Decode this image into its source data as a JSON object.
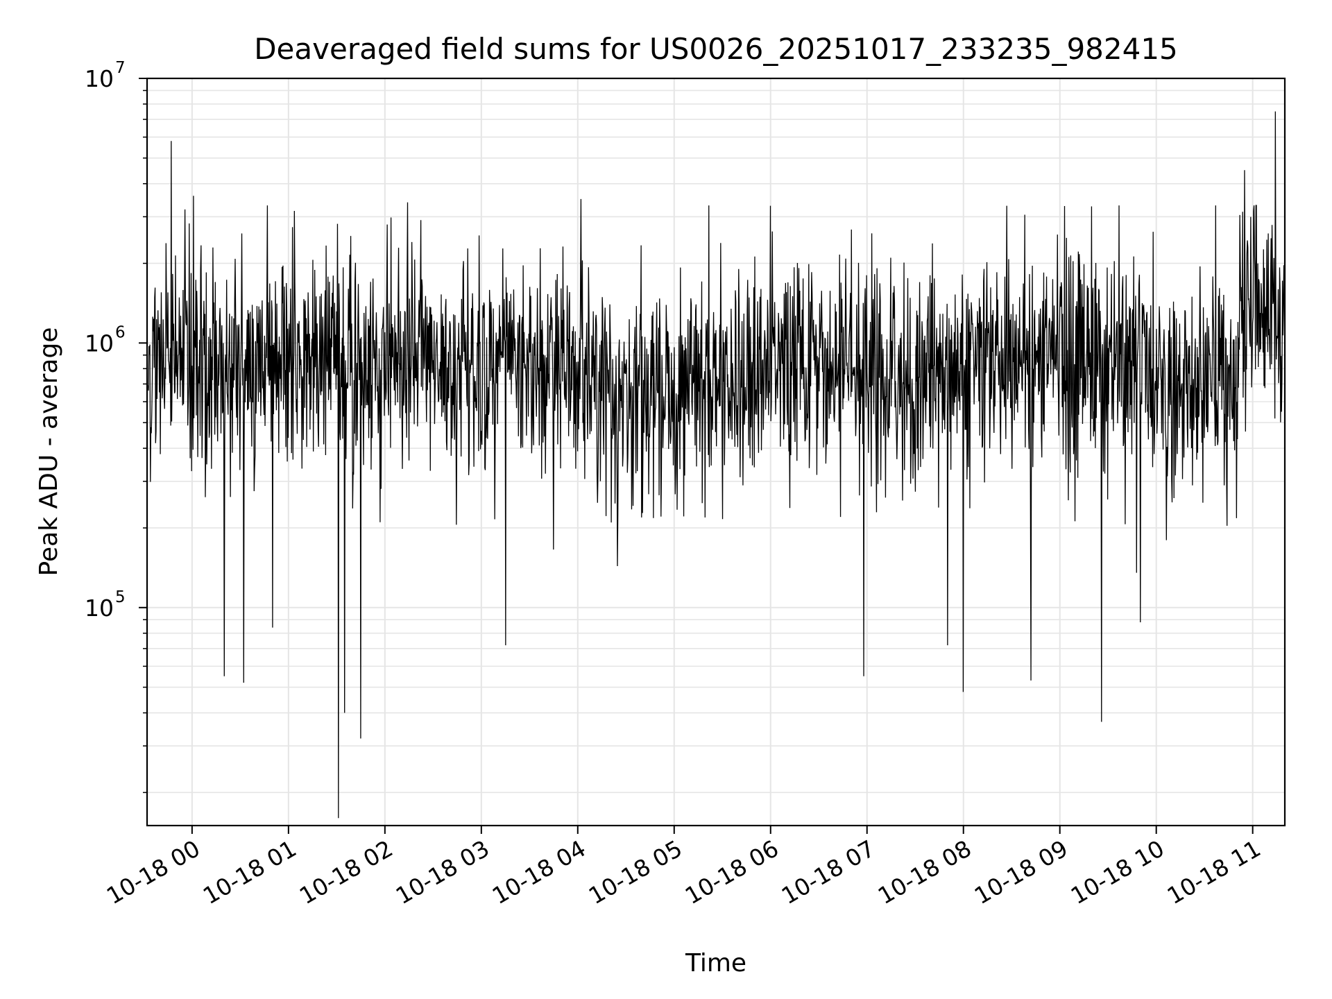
{
  "chart_data": {
    "type": "line",
    "title": "Deaveraged field sums for US0026_20251017_233235_982415",
    "xlabel": "Time",
    "ylabel": "Peak ADU - average",
    "x_tick_labels": [
      "10-18 00",
      "10-18 01",
      "10-18 02",
      "10-18 03",
      "10-18 04",
      "10-18 05",
      "10-18 06",
      "10-18 07",
      "10-18 08",
      "10-18 09",
      "10-18 10",
      "10-18 11"
    ],
    "y_tick_labels": [
      {
        "base": "10",
        "exp": "5",
        "value": 100000
      },
      {
        "base": "10",
        "exp": "6",
        "value": 1000000
      },
      {
        "base": "10",
        "exp": "7",
        "value": 10000000
      }
    ],
    "xlim": [
      "2025-10-17 23:32",
      "2025-10-18 11:20"
    ],
    "ylim": [
      15000,
      10000000
    ],
    "y_scale": "log",
    "grid": true,
    "line_color": "#000000",
    "grid_color": "#e5e5e5",
    "series": [
      {
        "x_start": "2025-10-17 23:32:35",
        "x_end": "2025-10-18 11:20:00",
        "typical_range": [
          300000,
          2000000
        ],
        "notable_peaks": [
          {
            "t": "2025-10-17 23:47",
            "v": 5800000
          },
          {
            "t": "2025-10-18 00:01",
            "v": 3600000
          },
          {
            "t": "2025-10-18 02:14",
            "v": 3400000
          },
          {
            "t": "2025-10-18 04:02",
            "v": 3500000
          },
          {
            "t": "2025-10-18 06:00",
            "v": 3300000
          },
          {
            "t": "2025-10-18 08:27",
            "v": 3300000
          },
          {
            "t": "2025-10-18 10:55",
            "v": 4500000
          },
          {
            "t": "2025-10-18 11:14",
            "v": 7500000
          }
        ],
        "notable_dips": [
          {
            "t": "2025-10-18 00:20",
            "v": 55000
          },
          {
            "t": "2025-10-18 00:32",
            "v": 52000
          },
          {
            "t": "2025-10-18 00:50",
            "v": 84000
          },
          {
            "t": "2025-10-18 01:31",
            "v": 16000
          },
          {
            "t": "2025-10-18 01:35",
            "v": 40000
          },
          {
            "t": "2025-10-18 01:45",
            "v": 32000
          },
          {
            "t": "2025-10-18 03:15",
            "v": 72000
          },
          {
            "t": "2025-10-18 06:58",
            "v": 55000
          },
          {
            "t": "2025-10-18 07:50",
            "v": 72000
          },
          {
            "t": "2025-10-18 08:00",
            "v": 48000
          },
          {
            "t": "2025-10-18 08:42",
            "v": 53000
          },
          {
            "t": "2025-10-18 09:26",
            "v": 37000
          },
          {
            "t": "2025-10-18 09:50",
            "v": 88000
          }
        ]
      }
    ]
  }
}
